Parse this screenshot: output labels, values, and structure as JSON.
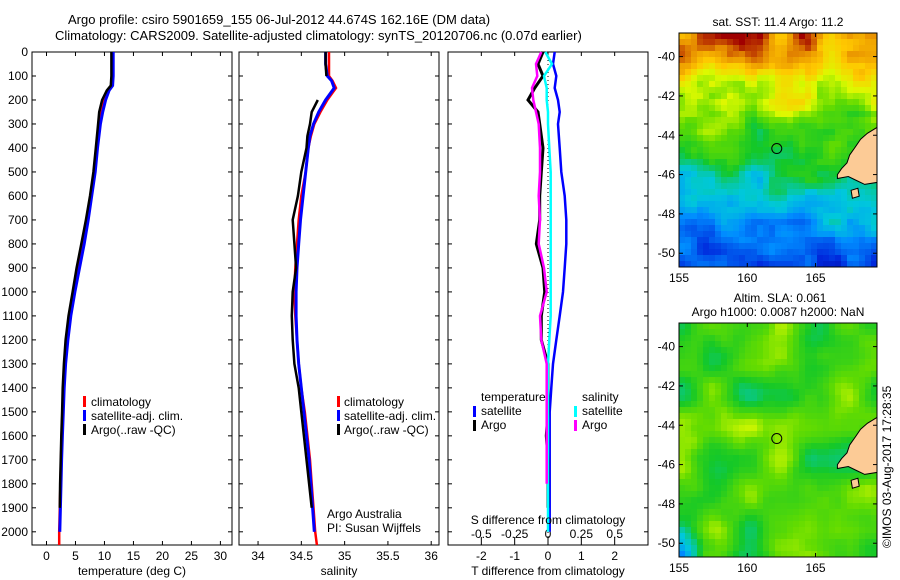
{
  "header": {
    "title_line1": "Argo profile: csiro 5901659_155 06-Jul-2012 44.674S 162.16E (DM data)",
    "title_line2": "Climatology: CARS2009. Satellite-adjusted climatology: synTS_20120706.nc (0.07d earlier)"
  },
  "colors": {
    "climatology": "#ff0000",
    "satellite": "#0000ff",
    "argo": "#000000",
    "sal_satellite": "#00ffff",
    "sal_argo": "#ff00ff",
    "land": "#fccb96"
  },
  "chart_data": [
    {
      "id": "temperature",
      "type": "line",
      "xlabel": "temperature (deg C)",
      "ylabel": "",
      "xlim": [
        -2.5,
        32
      ],
      "ylim": [
        2055,
        0
      ],
      "xticks": [
        0,
        5,
        10,
        15,
        20,
        25,
        30
      ],
      "xtick_labels": [
        "0",
        "5",
        "10",
        "15",
        "20",
        "25",
        "30"
      ],
      "yticks": [
        0,
        100,
        200,
        300,
        400,
        500,
        600,
        700,
        800,
        900,
        1000,
        1100,
        1200,
        1300,
        1400,
        1500,
        1600,
        1700,
        1800,
        1900,
        2000
      ],
      "ytick_labels": [
        "0",
        "100",
        "200",
        "300",
        "400",
        "500",
        "600",
        "700",
        "800",
        "900",
        "1000",
        "1100",
        "1200",
        "1300",
        "1400",
        "1500",
        "1600",
        "1700",
        "1800",
        "1900",
        "2000"
      ],
      "depth": [
        0,
        50,
        100,
        140,
        160,
        200,
        250,
        300,
        400,
        500,
        600,
        700,
        800,
        900,
        1000,
        1100,
        1200,
        1300,
        1400,
        1500,
        1600,
        1700,
        1800,
        1900,
        2000,
        2055
      ],
      "series": [
        {
          "name": "climatology",
          "values": [
            11.3,
            11.3,
            11.3,
            11.2,
            10.6,
            9.9,
            9.4,
            9.1,
            8.6,
            8.2,
            7.6,
            6.9,
            6.2,
            5.4,
            4.6,
            3.9,
            3.4,
            3.1,
            2.9,
            2.75,
            2.6,
            2.5,
            2.4,
            2.3,
            2.2,
            2.2
          ]
        },
        {
          "name": "satellite-adj. clim.",
          "values": [
            11.5,
            11.5,
            11.5,
            11.4,
            10.8,
            10.2,
            9.7,
            9.3,
            8.8,
            8.4,
            7.8,
            7.2,
            6.5,
            5.7,
            4.9,
            4.2,
            3.7,
            3.3,
            3.05,
            2.9,
            2.75,
            2.6,
            2.5,
            2.4,
            2.3,
            null
          ]
        },
        {
          "name": "Argo(..raw -QC)",
          "values": [
            11.2,
            11.2,
            11.2,
            11.1,
            10.4,
            9.6,
            9.1,
            8.9,
            8.5,
            8.1,
            7.5,
            6.8,
            6.0,
            5.2,
            4.5,
            3.8,
            3.3,
            3.0,
            2.8,
            2.7,
            2.55,
            2.45,
            2.35,
            2.3,
            null,
            null
          ]
        }
      ],
      "legend": {
        "placement": "center-left",
        "entries": [
          "climatology",
          "satellite-adj. clim.",
          "Argo(..raw -QC)"
        ]
      }
    },
    {
      "id": "salinity",
      "type": "line",
      "xlabel": "salinity",
      "xlim": [
        33.78,
        36.09
      ],
      "ylim": [
        2055,
        0
      ],
      "xticks": [
        34,
        34.5,
        35,
        35.5,
        36
      ],
      "xtick_labels": [
        "34",
        "34.5",
        "35",
        "35.5",
        "36"
      ],
      "depth": [
        0,
        50,
        100,
        120,
        150,
        170,
        200,
        250,
        300,
        350,
        400,
        500,
        600,
        700,
        800,
        900,
        1000,
        1100,
        1200,
        1300,
        1400,
        1500,
        1600,
        1700,
        1800,
        1900,
        2000,
        2055
      ],
      "series": [
        {
          "name": "climatology",
          "values": [
            34.82,
            34.82,
            34.82,
            34.86,
            34.9,
            34.86,
            34.8,
            34.72,
            34.65,
            34.61,
            34.58,
            34.55,
            34.5,
            34.47,
            34.45,
            34.43,
            34.42,
            34.43,
            34.45,
            34.47,
            34.5,
            34.54,
            34.57,
            34.6,
            34.62,
            34.64,
            34.66,
            34.68
          ]
        },
        {
          "name": "satellite-adj. clim.",
          "values": [
            34.78,
            34.78,
            34.8,
            34.85,
            34.88,
            34.84,
            34.78,
            34.7,
            34.64,
            34.6,
            34.58,
            34.55,
            34.52,
            34.49,
            34.47,
            34.45,
            34.44,
            34.44,
            34.45,
            34.47,
            34.5,
            34.53,
            34.56,
            34.59,
            34.61,
            34.63,
            34.65,
            null
          ]
        },
        {
          "name": "Argo(..raw -QC)",
          "values": [
            34.78,
            34.78,
            34.79,
            null,
            34.76,
            null,
            34.69,
            34.62,
            34.6,
            34.57,
            34.56,
            34.5,
            34.46,
            34.4,
            34.42,
            34.44,
            34.4,
            34.39,
            34.4,
            34.42,
            34.47,
            34.5,
            34.53,
            34.56,
            34.59,
            34.62,
            null,
            null
          ]
        }
      ],
      "legend": {
        "placement": "center-right",
        "entries": [
          "climatology",
          "satellite-adj. clim.",
          "Argo(..raw -QC)"
        ]
      },
      "annotation": [
        "Argo Australia",
        "PI: Susan Wijffels"
      ]
    },
    {
      "id": "difference",
      "type": "line",
      "xlabel": "T difference from climatology",
      "xlabel_top": "S difference from climatology",
      "xlim": [
        -3,
        3
      ],
      "ylim": [
        2055,
        0
      ],
      "xticks": [
        -2,
        -1,
        0,
        1,
        2
      ],
      "xtick_labels": [
        "-2",
        "-1",
        "0",
        "1",
        "2"
      ],
      "sticks": [
        -0.5,
        -0.25,
        0,
        0.25,
        0.5
      ],
      "stick_labels": [
        "-0.5",
        "-0.25",
        "0",
        "0.25",
        "0.5"
      ],
      "s_scale": 4,
      "depth": [
        0,
        50,
        100,
        150,
        200,
        250,
        300,
        400,
        500,
        600,
        700,
        800,
        900,
        1000,
        1100,
        1200,
        1300,
        1400,
        1500,
        1600,
        1700,
        1800,
        1900,
        2000
      ],
      "series": [
        {
          "name": "temperature satellite",
          "values": [
            0.2,
            0.15,
            0.25,
            0.2,
            0.3,
            0.35,
            0.3,
            0.35,
            0.4,
            0.5,
            0.55,
            0.55,
            0.5,
            0.45,
            0.35,
            0.25,
            0.15,
            0.1,
            0.05,
            0.05,
            0.05,
            0.05,
            0.05,
            0.05
          ]
        },
        {
          "name": "temperature Argo",
          "values": [
            -0.15,
            -0.3,
            -0.15,
            -0.4,
            -0.6,
            -0.3,
            -0.25,
            -0.15,
            -0.2,
            -0.25,
            -0.25,
            -0.35,
            -0.15,
            -0.1,
            -0.2,
            -0.2,
            0.0,
            0.0,
            0.0,
            -0.05,
            0.0,
            0.0,
            0.0,
            null
          ]
        },
        {
          "name": "salinity satellite",
          "values": [
            -0.02,
            0.03,
            -0.03,
            -0.01,
            -0.01,
            0.0,
            0.0,
            0.01,
            0.02,
            0.02,
            0.02,
            0.02,
            0.02,
            0.02,
            0.02,
            0.01,
            0.0,
            0.0,
            0.0,
            0.0,
            0.0,
            0.0,
            0.0,
            0.0
          ]
        },
        {
          "name": "salinity Argo",
          "values": [
            -0.05,
            -0.09,
            -0.08,
            -0.12,
            -0.11,
            -0.09,
            -0.07,
            -0.06,
            -0.06,
            -0.07,
            -0.06,
            -0.07,
            -0.03,
            -0.01,
            -0.06,
            -0.05,
            -0.01,
            -0.01,
            -0.01,
            -0.01,
            -0.01,
            -0.01,
            null,
            null
          ]
        }
      ],
      "legend": {
        "placement": "center",
        "temperature_header": "temperature",
        "salinity_header": "salinity",
        "entries": [
          {
            "group": "temperature",
            "label": "satellite"
          },
          {
            "group": "temperature",
            "label": "Argo"
          },
          {
            "group": "salinity",
            "label": "satellite"
          },
          {
            "group": "salinity",
            "label": "Argo"
          }
        ]
      }
    },
    {
      "id": "sst-map",
      "type": "heatmap",
      "title": "sat. SST: 11.4 Argo: 11.2",
      "xlim": [
        155,
        169.5
      ],
      "ylim": [
        -50.7,
        -38.8
      ],
      "xticks": [
        155,
        160,
        165
      ],
      "xtick_labels": [
        "155",
        "160",
        "165"
      ],
      "yticks": [
        -40,
        -42,
        -44,
        -46,
        -48,
        -50
      ],
      "ytick_labels": [
        "-40",
        "-42",
        "-44",
        "-46",
        "-48",
        "-50"
      ],
      "marker": {
        "lon": 162.16,
        "lat": -44.674
      },
      "colormap": "warm-north-to-cold-south"
    },
    {
      "id": "sla-map",
      "type": "heatmap",
      "title_line1": "Altim. SLA: 0.061",
      "title_line2": "Argo h1000: 0.0087 h2000: NaN",
      "xlim": [
        155,
        169.5
      ],
      "ylim": [
        -50.7,
        -38.8
      ],
      "xticks": [
        155,
        160,
        165
      ],
      "xtick_labels": [
        "155",
        "160",
        "165"
      ],
      "yticks": [
        -40,
        -42,
        -44,
        -46,
        -48,
        -50
      ],
      "ytick_labels": [
        "-40",
        "-42",
        "-44",
        "-46",
        "-48",
        "-50"
      ],
      "marker": {
        "lon": 162.16,
        "lat": -44.674
      },
      "colormap": "green-yellow"
    }
  ],
  "footer": {
    "credit": "©IMOS 03-Aug-2017 17:28:35"
  }
}
